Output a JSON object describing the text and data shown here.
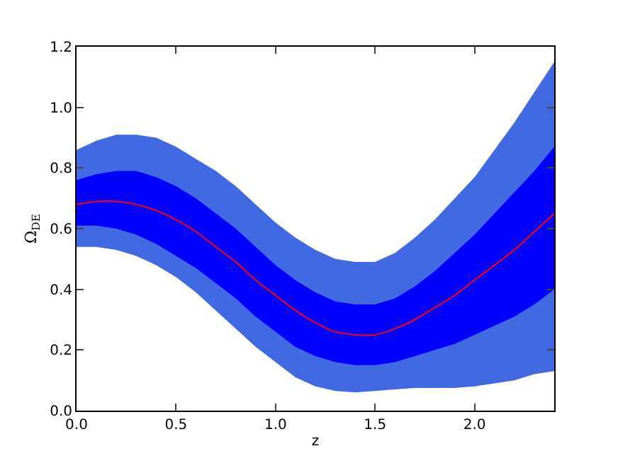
{
  "chart_data": {
    "type": "line",
    "xlabel": "z",
    "ylabel": "Ω$_{DE}$",
    "x": [
      0,
      0.1,
      0.2,
      0.3,
      0.4,
      0.5,
      0.6,
      0.7,
      0.8,
      0.9,
      1.0,
      1.1,
      1.2,
      1.3,
      1.4,
      1.5,
      1.6,
      1.7,
      1.8,
      1.9,
      2.0,
      2.1,
      2.2,
      2.3,
      2.4
    ],
    "series": [
      {
        "color": "#4169e1",
        "values": [
          null,
          null,
          null,
          null,
          null,
          null,
          null,
          null,
          null,
          null,
          null,
          null,
          null,
          null,
          null,
          null,
          null,
          null,
          null,
          null,
          null,
          null,
          null,
          null,
          null
        ],
        "lower": [
          0.54,
          0.54,
          0.53,
          0.51,
          0.48,
          0.44,
          0.39,
          0.33,
          0.27,
          0.21,
          0.16,
          0.11,
          0.08,
          0.065,
          0.06,
          0.065,
          0.07,
          0.075,
          0.075,
          0.075,
          0.08,
          0.09,
          0.1,
          0.12,
          0.13
        ],
        "upper": [
          0.86,
          0.89,
          0.91,
          0.91,
          0.9,
          0.87,
          0.83,
          0.79,
          0.74,
          0.68,
          0.62,
          0.57,
          0.53,
          0.5,
          0.49,
          0.49,
          0.52,
          0.57,
          0.63,
          0.7,
          0.77,
          0.86,
          0.95,
          1.05,
          1.15
        ]
      },
      {
        "color": "#0000ff",
        "values": [
          null,
          null,
          null,
          null,
          null,
          null,
          null,
          null,
          null,
          null,
          null,
          null,
          null,
          null,
          null,
          null,
          null,
          null,
          null,
          null,
          null,
          null,
          null,
          null,
          null
        ],
        "lower": [
          0.61,
          0.61,
          0.6,
          0.58,
          0.55,
          0.51,
          0.47,
          0.42,
          0.37,
          0.31,
          0.26,
          0.21,
          0.18,
          0.16,
          0.15,
          0.15,
          0.16,
          0.18,
          0.2,
          0.22,
          0.25,
          0.28,
          0.31,
          0.35,
          0.4
        ],
        "upper": [
          0.76,
          0.78,
          0.79,
          0.79,
          0.77,
          0.74,
          0.7,
          0.65,
          0.6,
          0.54,
          0.48,
          0.43,
          0.39,
          0.36,
          0.35,
          0.35,
          0.37,
          0.41,
          0.46,
          0.52,
          0.58,
          0.65,
          0.72,
          0.79,
          0.87
        ]
      },
      {
        "color": "#ff0000",
        "values": [
          0.68,
          0.69,
          0.69,
          0.68,
          0.66,
          0.63,
          0.59,
          0.54,
          0.49,
          0.43,
          0.38,
          0.33,
          0.29,
          0.26,
          0.25,
          0.25,
          0.27,
          0.3,
          0.34,
          0.38,
          0.43,
          0.48,
          0.53,
          0.59,
          0.65
        ]
      }
    ],
    "xlim": [
      0,
      2.4
    ],
    "xticks": [
      {
        "value": 0,
        "label": "0.0"
      },
      0.5,
      {
        "value": 1,
        "label": "1.0"
      },
      1.5,
      {
        "value": 2,
        "label": "2.0"
      }
    ],
    "ylim": [
      0,
      1.2
    ],
    "yticks": [
      {
        "value": 0,
        "label": "0.0"
      },
      0.2,
      0.4,
      0.6,
      0.8,
      {
        "value": 1,
        "label": "1.0"
      },
      1.2
    ],
    "marker": "none",
    "line_style": "solid"
  }
}
